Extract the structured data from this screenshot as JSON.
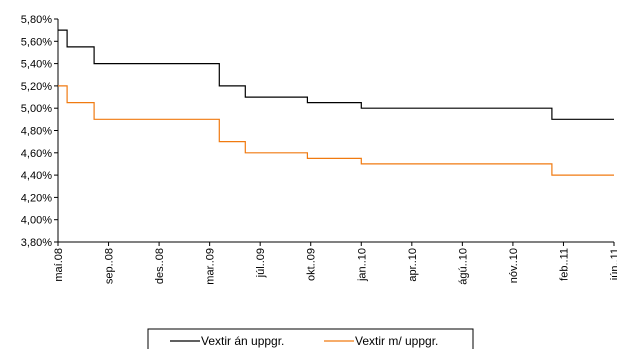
{
  "chart_data": {
    "type": "line",
    "step": true,
    "x_labels": [
      "maí.08",
      "sep..08",
      "des..08",
      "mar..09",
      "júl..09",
      "okt..09",
      "jan..10",
      "apr..10",
      "ágú..10",
      "nóv..10",
      "feb..11",
      "jún..11"
    ],
    "xlim": [
      "2008-05-01",
      "2011-06-30"
    ],
    "ylim": [
      3.8,
      5.8
    ],
    "y_ticks": [
      3.8,
      4.0,
      4.2,
      4.4,
      4.6,
      4.8,
      5.0,
      5.2,
      5.4,
      5.6,
      5.8
    ],
    "y_tick_labels": [
      "3,80%",
      "4,00%",
      "4,20%",
      "4,40%",
      "4,60%",
      "4,80%",
      "5,00%",
      "5,20%",
      "5,40%",
      "5,60%",
      "5,80%"
    ],
    "grid": false,
    "legend_position": "bottom",
    "series": [
      {
        "name": "Vextir án uppgr.",
        "color": "#000000",
        "points": [
          [
            "2008-05-01",
            5.7
          ],
          [
            "2008-05-20",
            5.55
          ],
          [
            "2008-07-15",
            5.4
          ],
          [
            "2009-04-01",
            5.2
          ],
          [
            "2009-05-25",
            5.1
          ],
          [
            "2009-10-01",
            5.05
          ],
          [
            "2010-01-21",
            5.0
          ],
          [
            "2011-02-21",
            4.9
          ],
          [
            "2011-06-30",
            4.9
          ]
        ]
      },
      {
        "name": "Vextir m/ uppgr.",
        "color": "#f07a10",
        "points": [
          [
            "2008-05-01",
            5.2
          ],
          [
            "2008-05-20",
            5.05
          ],
          [
            "2008-07-15",
            4.9
          ],
          [
            "2009-04-01",
            4.7
          ],
          [
            "2009-05-25",
            4.6
          ],
          [
            "2009-10-01",
            4.55
          ],
          [
            "2010-01-21",
            4.5
          ],
          [
            "2011-02-21",
            4.4
          ],
          [
            "2011-06-30",
            4.4
          ]
        ]
      }
    ]
  }
}
